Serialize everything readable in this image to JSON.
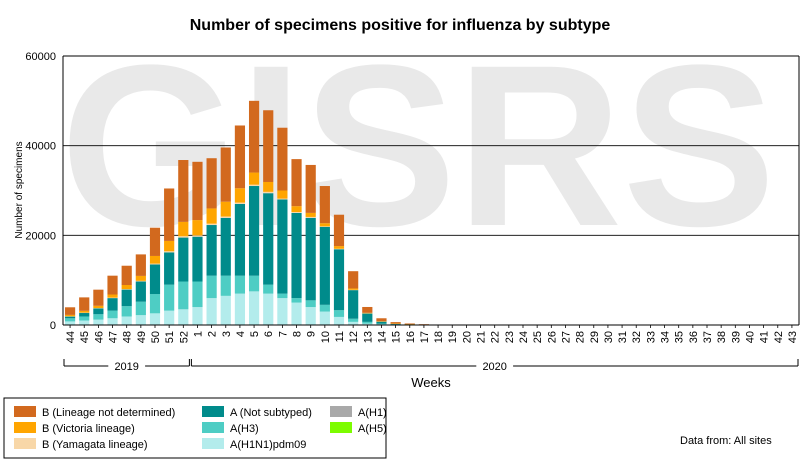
{
  "chart_data": {
    "type": "bar",
    "stacked": true,
    "title": "Number of specimens positive for influenza by subtype",
    "xlabel": "Weeks",
    "ylabel": "Number of specimens",
    "ylim": [
      0,
      60000
    ],
    "yticks": [
      "0",
      "20000",
      "40000",
      "60000"
    ],
    "grid": true,
    "watermark": "GISRS",
    "source_note": "Data from: All sites",
    "years": [
      {
        "label": "2019",
        "from": "44",
        "to": "52"
      },
      {
        "label": "2020",
        "from": "1",
        "to": "43"
      }
    ],
    "categories": [
      "44",
      "45",
      "46",
      "47",
      "48",
      "49",
      "50",
      "51",
      "52",
      "1",
      "2",
      "3",
      "4",
      "5",
      "6",
      "7",
      "8",
      "9",
      "10",
      "11",
      "12",
      "13",
      "14",
      "15",
      "16",
      "17",
      "18",
      "19",
      "20",
      "21",
      "22",
      "23",
      "24",
      "25",
      "26",
      "27",
      "28",
      "29",
      "30",
      "31",
      "32",
      "33",
      "34",
      "35",
      "36",
      "37",
      "38",
      "39",
      "40",
      "41",
      "42",
      "43"
    ],
    "series": [
      {
        "name": "A(H1N1)pdm09",
        "color": "#b3ecec",
        "values": [
          800,
          1000,
          1200,
          1500,
          1900,
          2200,
          2600,
          3200,
          3500,
          4000,
          6000,
          6500,
          7000,
          7500,
          7000,
          6000,
          5000,
          4000,
          3000,
          1800,
          700,
          300,
          150,
          80,
          40,
          20,
          10,
          5,
          0,
          0,
          0,
          0,
          0,
          0,
          0,
          0,
          0,
          0,
          0,
          0,
          0,
          0,
          0,
          0,
          0,
          0,
          0,
          0,
          0,
          0,
          0,
          0
        ]
      },
      {
        "name": "A(H3)",
        "color": "#4ecdc4",
        "values": [
          700,
          900,
          1200,
          1700,
          2300,
          3000,
          4300,
          5800,
          6200,
          5700,
          5000,
          4500,
          4000,
          3500,
          2000,
          1000,
          1000,
          1500,
          1500,
          1500,
          700,
          400,
          150,
          70,
          40,
          20,
          10,
          5,
          0,
          0,
          0,
          0,
          0,
          0,
          0,
          0,
          0,
          0,
          0,
          0,
          0,
          0,
          0,
          0,
          0,
          0,
          0,
          0,
          0,
          0,
          0,
          0
        ]
      },
      {
        "name": "A(Not subtyped)",
        "color": "#008b8b",
        "values": [
          400,
          800,
          1300,
          2800,
          3700,
          4500,
          6600,
          7200,
          9800,
          10000,
          11300,
          12900,
          16000,
          20000,
          20400,
          21000,
          19000,
          18400,
          17400,
          13600,
          6400,
          1900,
          500,
          170,
          100,
          50,
          30,
          20,
          10,
          5,
          5,
          5,
          5,
          5,
          5,
          5,
          5,
          5,
          5,
          5,
          5,
          5,
          5,
          5,
          5,
          5,
          5,
          5,
          5,
          5,
          5,
          5
        ]
      },
      {
        "name": "A(H1)",
        "color": "#a9a9a9",
        "values": [
          0,
          0,
          0,
          0,
          0,
          0,
          0,
          0,
          0,
          0,
          0,
          0,
          0,
          0,
          0,
          0,
          0,
          0,
          0,
          0,
          0,
          0,
          0,
          0,
          0,
          0,
          0,
          0,
          0,
          0,
          0,
          0,
          0,
          0,
          0,
          0,
          0,
          0,
          0,
          0,
          0,
          0,
          0,
          0,
          0,
          0,
          0,
          0,
          0,
          0,
          0,
          0
        ]
      },
      {
        "name": "A(H5)",
        "color": "#7cfc00",
        "values": [
          0,
          0,
          0,
          0,
          0,
          0,
          0,
          0,
          0,
          0,
          0,
          0,
          0,
          0,
          0,
          0,
          0,
          0,
          0,
          0,
          0,
          0,
          0,
          0,
          0,
          0,
          0,
          0,
          0,
          0,
          0,
          0,
          0,
          0,
          0,
          0,
          0,
          0,
          0,
          0,
          0,
          0,
          0,
          0,
          0,
          0,
          0,
          0,
          0,
          0,
          0,
          0
        ]
      },
      {
        "name": "B (Yamagata lineage)",
        "color": "#f8d7a8",
        "values": [
          50,
          60,
          80,
          100,
          120,
          150,
          200,
          250,
          300,
          300,
          300,
          300,
          300,
          300,
          300,
          200,
          200,
          200,
          100,
          100,
          50,
          20,
          10,
          5,
          0,
          0,
          0,
          0,
          0,
          0,
          0,
          0,
          0,
          0,
          0,
          0,
          0,
          0,
          0,
          0,
          0,
          0,
          0,
          0,
          0,
          0,
          0,
          0,
          0,
          0,
          0,
          0
        ]
      },
      {
        "name": "B (Victoria lineage)",
        "color": "#ffa500",
        "values": [
          300,
          400,
          500,
          700,
          900,
          1100,
          1700,
          2300,
          3200,
          3400,
          3400,
          3300,
          3200,
          2700,
          2200,
          1800,
          1300,
          900,
          700,
          600,
          300,
          100,
          50,
          20,
          10,
          5,
          5,
          5,
          5,
          0,
          0,
          0,
          0,
          0,
          0,
          0,
          0,
          0,
          0,
          0,
          0,
          0,
          0,
          0,
          0,
          0,
          0,
          0,
          0,
          0,
          0,
          0
        ]
      },
      {
        "name": "B (Lineage not determined)",
        "color": "#d2691e",
        "values": [
          1700,
          3000,
          3600,
          4200,
          4300,
          4800,
          6300,
          11700,
          13800,
          13000,
          11200,
          12100,
          14000,
          16000,
          16000,
          14000,
          10500,
          10700,
          8300,
          7000,
          3850,
          1300,
          640,
          300,
          150,
          80,
          50,
          30,
          20,
          20,
          20,
          20,
          20,
          20,
          20,
          20,
          20,
          20,
          20,
          20,
          20,
          20,
          20,
          20,
          20,
          20,
          20,
          20,
          20,
          20,
          20,
          20
        ]
      }
    ]
  },
  "legend": {
    "columns": [
      [
        "B (Lineage not determined)",
        "B (Victoria lineage)",
        "B (Yamagata lineage)"
      ],
      [
        "A (Not subtyped)",
        "A(H3)",
        "A(H1N1)pdm09"
      ],
      [
        "A(H1)",
        "A(H5)"
      ]
    ],
    "colors": [
      [
        "#d2691e",
        "#ffa500",
        "#f8d7a8"
      ],
      [
        "#008b8b",
        "#4ecdc4",
        "#b3ecec"
      ],
      [
        "#a9a9a9",
        "#7cfc00"
      ]
    ]
  }
}
